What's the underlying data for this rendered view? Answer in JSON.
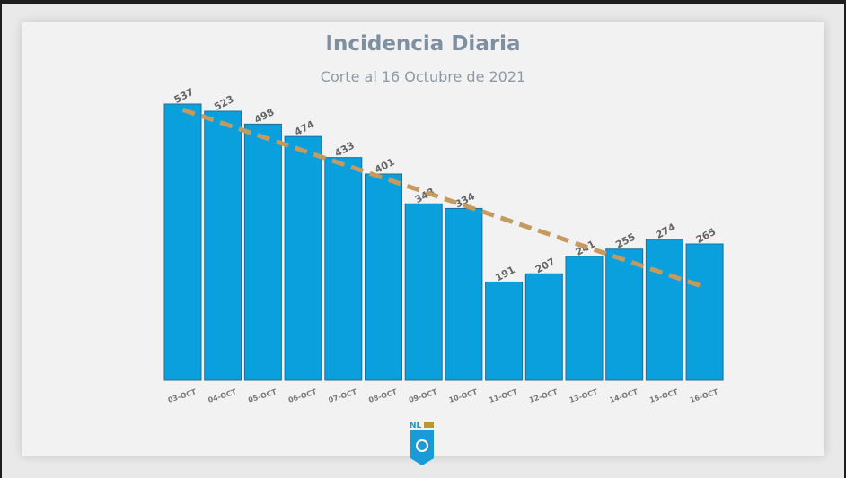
{
  "chart_data": {
    "type": "bar",
    "title": "Incidencia Diaria",
    "subtitle": "Corte al 16 Octubre de 2021",
    "categories": [
      "03-OCT",
      "04-OCT",
      "05-OCT",
      "06-OCT",
      "07-OCT",
      "08-OCT",
      "09-OCT",
      "10-OCT",
      "11-OCT",
      "12-OCT",
      "13-OCT",
      "14-OCT",
      "15-OCT",
      "16-OCT"
    ],
    "values": [
      537,
      523,
      498,
      474,
      433,
      401,
      343,
      334,
      191,
      207,
      241,
      255,
      274,
      265
    ],
    "trendline": {
      "type": "linear",
      "style": "dashed",
      "start": 526,
      "end": 181,
      "color": "#c49a5e"
    },
    "ylim": [
      0,
      560
    ],
    "grid": false,
    "legend": "none",
    "colors": {
      "bar": "#0aa0dd",
      "bar_edge": "#1d6f97",
      "labels": "#666666"
    }
  },
  "logo": {
    "text": "NL",
    "name": "shield-logo"
  }
}
